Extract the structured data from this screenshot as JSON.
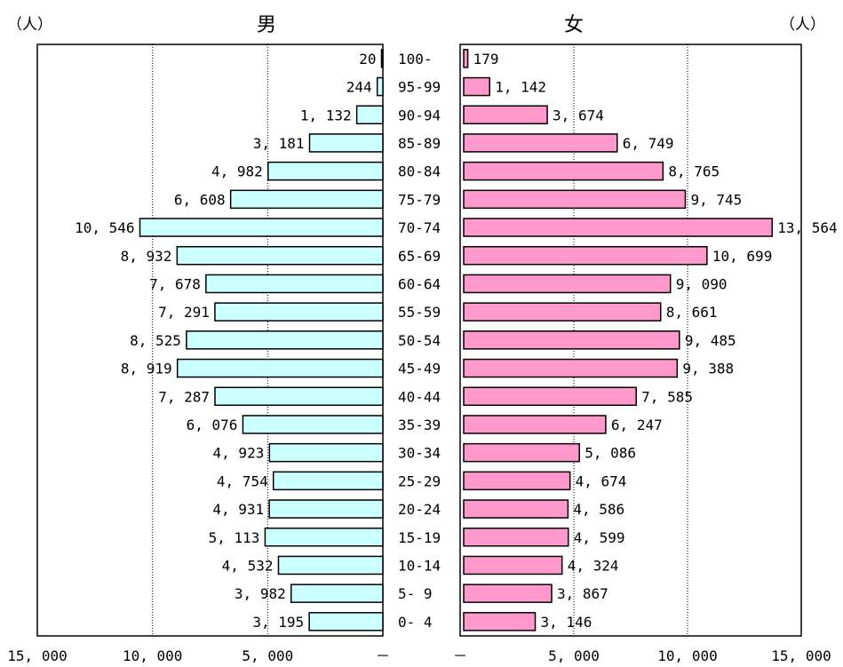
{
  "chart_data": {
    "type": "bar",
    "unit_left": "（人）",
    "unit_right": "（人）",
    "male_title": "男",
    "female_title": "女",
    "categories": [
      "100-",
      "95-99",
      "90-94",
      "85-89",
      "80-84",
      "75-79",
      "70-74",
      "65-69",
      "60-64",
      "55-59",
      "50-54",
      "45-49",
      "40-44",
      "35-39",
      "30-34",
      "25-29",
      "20-24",
      "15-19",
      "10-14",
      "5- 9",
      "0- 4"
    ],
    "series": [
      {
        "name": "男",
        "values": [
          20,
          244,
          1132,
          3181,
          4982,
          6608,
          10546,
          8932,
          7678,
          7291,
          8525,
          8919,
          7287,
          6076,
          4923,
          4754,
          4931,
          5113,
          4532,
          3982,
          3195
        ],
        "labels": [
          "20",
          "244",
          "1, 132",
          "3, 181",
          "4, 982",
          "6, 608",
          "10, 546",
          "8, 932",
          "7, 678",
          "7, 291",
          "8, 525",
          "8, 919",
          "7, 287",
          "6, 076",
          "4, 923",
          "4, 754",
          "4, 931",
          "5, 113",
          "4, 532",
          "3, 982",
          "3, 195"
        ],
        "color": "#ccffff"
      },
      {
        "name": "女",
        "values": [
          179,
          1142,
          3674,
          6749,
          8765,
          9745,
          13564,
          10699,
          9090,
          8661,
          9485,
          9388,
          7585,
          6247,
          5086,
          4674,
          4586,
          4599,
          4324,
          3867,
          3146
        ],
        "labels": [
          "179",
          "1, 142",
          "3, 674",
          "6, 749",
          "8, 765",
          "9, 745",
          "13, 564",
          "10, 699",
          "9, 090",
          "8, 661",
          "9, 485",
          "9, 388",
          "7, 585",
          "6, 247",
          "5, 086",
          "4, 674",
          "4, 586",
          "4, 599",
          "4, 324",
          "3, 867",
          "3, 146"
        ],
        "color": "#ff99cc"
      }
    ],
    "left_ticks": [
      {
        "value": 15000,
        "label": "15, 000"
      },
      {
        "value": 10000,
        "label": "10, 000"
      },
      {
        "value": 5000,
        "label": "5, 000"
      },
      {
        "value": 0,
        "label": "－"
      }
    ],
    "right_ticks": [
      {
        "value": 0,
        "label": "－"
      },
      {
        "value": 5000,
        "label": "5, 000"
      },
      {
        "value": 10000,
        "label": "10, 000"
      },
      {
        "value": 15000,
        "label": "15, 000"
      }
    ],
    "xlim": [
      0,
      15000
    ],
    "grid": true
  }
}
